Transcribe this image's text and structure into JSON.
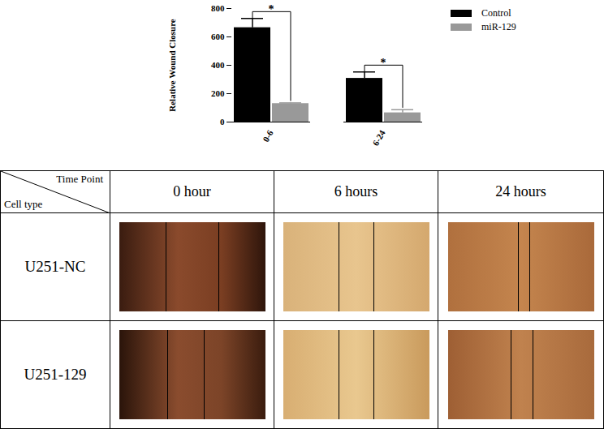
{
  "chart_data": {
    "type": "bar",
    "ylabel": "Relative Wound Closure",
    "categories": [
      "0-6",
      "6-24"
    ],
    "series": [
      {
        "name": "Control",
        "color": "#000000",
        "values": [
          665,
          308
        ],
        "errors": [
          65,
          45
        ]
      },
      {
        "name": "miR-129",
        "color": "#999999",
        "values": [
          130,
          65
        ],
        "errors": [
          5,
          22
        ]
      }
    ],
    "significance": [
      "*",
      "*"
    ],
    "ylim": [
      0,
      800
    ],
    "yticks": [
      0,
      200,
      400,
      600,
      800
    ],
    "legend": "top-right"
  },
  "table": {
    "header": {
      "column_label": "Time Point",
      "row_label": "Cell type",
      "columns": [
        "0 hour",
        "6 hours",
        "24 hours"
      ]
    },
    "rows": [
      {
        "label": "U251-NC"
      },
      {
        "label": "U251-129"
      }
    ]
  }
}
